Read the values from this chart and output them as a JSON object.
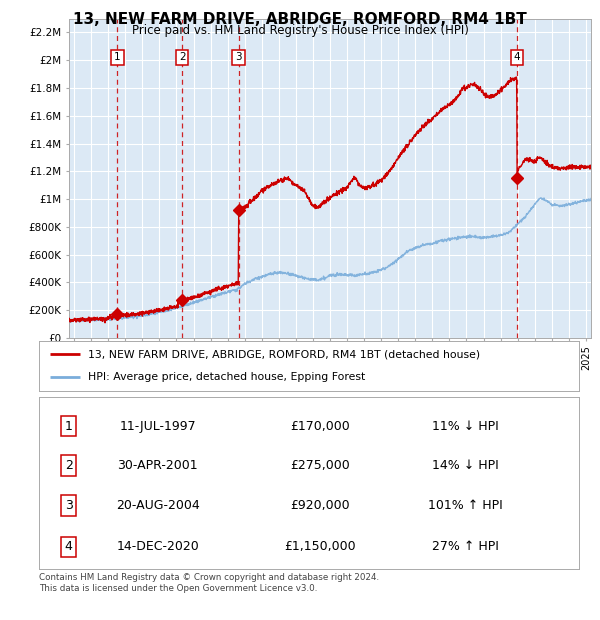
{
  "title": "13, NEW FARM DRIVE, ABRIDGE, ROMFORD, RM4 1BT",
  "subtitle": "Price paid vs. HM Land Registry's House Price Index (HPI)",
  "ylim": [
    0,
    2300000
  ],
  "xlim_start": 1994.7,
  "xlim_end": 2025.3,
  "background_color": "#dce9f5",
  "grid_color": "#ffffff",
  "red_line_color": "#cc0000",
  "blue_line_color": "#7aaddb",
  "sale_marker_color": "#cc0000",
  "dashed_line_color": "#cc0000",
  "transactions": [
    {
      "num": 1,
      "date_x": 1997.53,
      "price": 170000,
      "label": "11-JUL-1997",
      "price_str": "£170,000",
      "hpi_str": "11% ↓ HPI"
    },
    {
      "num": 2,
      "date_x": 2001.33,
      "price": 275000,
      "label": "30-APR-2001",
      "price_str": "£275,000",
      "hpi_str": "14% ↓ HPI"
    },
    {
      "num": 3,
      "date_x": 2004.64,
      "price": 920000,
      "label": "20-AUG-2004",
      "price_str": "£920,000",
      "hpi_str": "101% ↑ HPI"
    },
    {
      "num": 4,
      "date_x": 2020.96,
      "price": 1150000,
      "label": "14-DEC-2020",
      "price_str": "£1,150,000",
      "hpi_str": "27% ↑ HPI"
    }
  ],
  "legend_line1": "13, NEW FARM DRIVE, ABRIDGE, ROMFORD, RM4 1BT (detached house)",
  "legend_line2": "HPI: Average price, detached house, Epping Forest",
  "footnote": "Contains HM Land Registry data © Crown copyright and database right 2024.\nThis data is licensed under the Open Government Licence v3.0.",
  "yticks": [
    0,
    200000,
    400000,
    600000,
    800000,
    1000000,
    1200000,
    1400000,
    1600000,
    1800000,
    2000000,
    2200000
  ],
  "ytick_labels": [
    "£0",
    "£200K",
    "£400K",
    "£600K",
    "£800K",
    "£1M",
    "£1.2M",
    "£1.4M",
    "£1.6M",
    "£1.8M",
    "£2M",
    "£2.2M"
  ]
}
